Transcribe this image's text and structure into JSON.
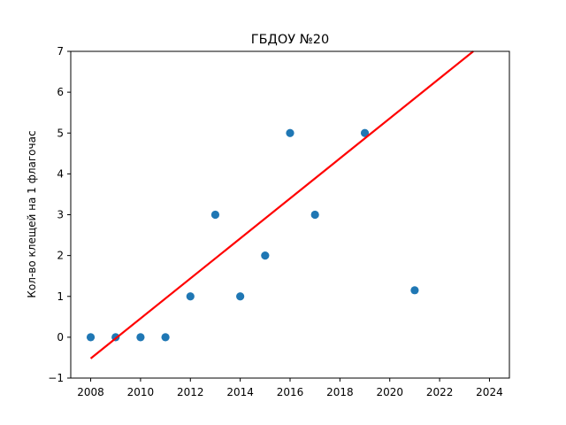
{
  "chart_data": {
    "type": "scatter",
    "title": "ГБДОУ №20",
    "xlabel": "",
    "ylabel": "Кол-во клещей на 1 флагочас",
    "xlim": [
      2007.2,
      2024.8
    ],
    "ylim": [
      -1,
      7
    ],
    "x_ticks": [
      2008,
      2010,
      2012,
      2014,
      2016,
      2018,
      2020,
      2022,
      2024
    ],
    "y_ticks": [
      -1,
      0,
      1,
      2,
      3,
      4,
      5,
      6,
      7
    ],
    "grid": false,
    "series": [
      {
        "type": "scatter",
        "color": "#1f77b4",
        "x": [
          2008,
          2009,
          2010,
          2011,
          2012,
          2013,
          2014,
          2015,
          2016,
          2017,
          2019,
          2021
        ],
        "y": [
          0,
          0,
          0,
          0,
          1,
          3,
          1,
          2,
          5,
          3,
          5,
          1.15
        ]
      },
      {
        "type": "line",
        "color": "#ff0000",
        "x": [
          2008,
          2023.35
        ],
        "y": [
          -0.52,
          7.0
        ]
      }
    ]
  }
}
